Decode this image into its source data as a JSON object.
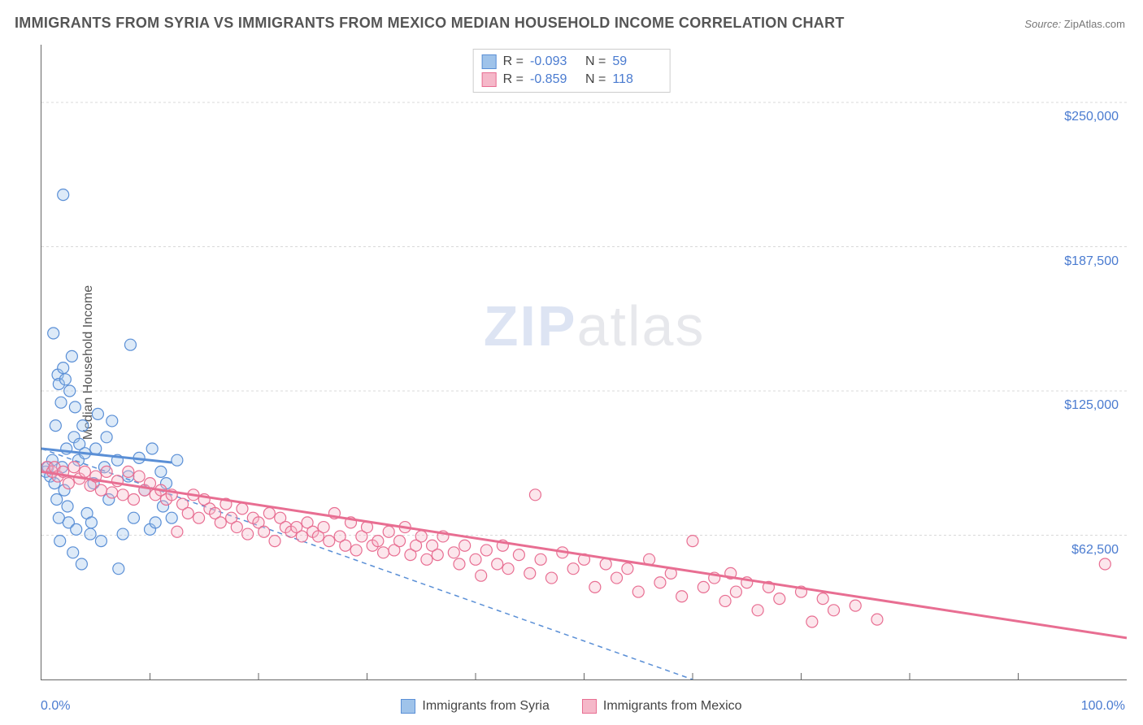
{
  "title": "IMMIGRANTS FROM SYRIA VS IMMIGRANTS FROM MEXICO MEDIAN HOUSEHOLD INCOME CORRELATION CHART",
  "source": {
    "label": "Source:",
    "text": "ZipAtlas.com"
  },
  "watermark": {
    "zip": "ZIP",
    "atlas": "atlas"
  },
  "chart": {
    "type": "scatter",
    "y_axis_label": "Median Household Income",
    "xlim": [
      0,
      100
    ],
    "ylim": [
      0,
      275000
    ],
    "x_ticks": [
      {
        "value": 0,
        "label": "0.0%"
      },
      {
        "value": 100,
        "label": "100.0%"
      }
    ],
    "x_minor_ticks": [
      10,
      20,
      30,
      40,
      50,
      60,
      70,
      80,
      90
    ],
    "y_gridlines": [
      {
        "value": 62500,
        "label": "$62,500"
      },
      {
        "value": 125000,
        "label": "$125,000"
      },
      {
        "value": 187500,
        "label": "$187,500"
      },
      {
        "value": 250000,
        "label": "$250,000"
      }
    ],
    "grid_color": "#d9d9d9",
    "background_color": "#ffffff",
    "marker_radius": 7,
    "marker_stroke_width": 1.2,
    "marker_fill_opacity": 0.35,
    "trendline_width": 3,
    "dashed_trendline_dash": "6 5",
    "series": [
      {
        "id": "syria",
        "label": "Immigrants from Syria",
        "color_fill": "#9fc3ea",
        "color_stroke": "#5a8fd6",
        "stats": {
          "R": "-0.093",
          "N": "59"
        },
        "trendline": {
          "x0": 0,
          "y0": 100000,
          "x1": 12,
          "y1": 94000,
          "solid": true
        },
        "dashed_trendline": {
          "x0": 0,
          "y0": 100000,
          "x1": 60,
          "y1": 0
        },
        "points": [
          [
            0.4,
            90000
          ],
          [
            0.6,
            92000
          ],
          [
            0.8,
            88000
          ],
          [
            1.0,
            95000
          ],
          [
            1.1,
            150000
          ],
          [
            1.2,
            85000
          ],
          [
            1.3,
            110000
          ],
          [
            1.4,
            78000
          ],
          [
            1.5,
            132000
          ],
          [
            1.6,
            128000
          ],
          [
            1.6,
            70000
          ],
          [
            1.7,
            60000
          ],
          [
            1.8,
            120000
          ],
          [
            1.9,
            92000
          ],
          [
            2.0,
            210000
          ],
          [
            2.0,
            135000
          ],
          [
            2.1,
            82000
          ],
          [
            2.2,
            130000
          ],
          [
            2.3,
            100000
          ],
          [
            2.4,
            75000
          ],
          [
            2.5,
            68000
          ],
          [
            2.6,
            125000
          ],
          [
            2.8,
            140000
          ],
          [
            2.9,
            55000
          ],
          [
            3.0,
            105000
          ],
          [
            3.1,
            118000
          ],
          [
            3.2,
            65000
          ],
          [
            3.4,
            95000
          ],
          [
            3.5,
            102000
          ],
          [
            3.7,
            50000
          ],
          [
            3.8,
            110000
          ],
          [
            4.0,
            98000
          ],
          [
            4.2,
            72000
          ],
          [
            4.5,
            63000
          ],
          [
            4.6,
            68000
          ],
          [
            4.8,
            85000
          ],
          [
            5.0,
            100000
          ],
          [
            5.2,
            115000
          ],
          [
            5.5,
            60000
          ],
          [
            5.8,
            92000
          ],
          [
            6.0,
            105000
          ],
          [
            6.2,
            78000
          ],
          [
            6.5,
            112000
          ],
          [
            7.0,
            95000
          ],
          [
            7.1,
            48000
          ],
          [
            7.5,
            63000
          ],
          [
            8.0,
            88000
          ],
          [
            8.2,
            145000
          ],
          [
            8.5,
            70000
          ],
          [
            9.0,
            96000
          ],
          [
            9.5,
            82000
          ],
          [
            10.0,
            65000
          ],
          [
            10.2,
            100000
          ],
          [
            10.5,
            68000
          ],
          [
            11.0,
            90000
          ],
          [
            11.2,
            75000
          ],
          [
            11.5,
            85000
          ],
          [
            12.0,
            70000
          ],
          [
            12.5,
            95000
          ]
        ]
      },
      {
        "id": "mexico",
        "label": "Immigrants from Mexico",
        "color_fill": "#f5b8c9",
        "color_stroke": "#e86e92",
        "stats": {
          "R": "-0.859",
          "N": "118"
        },
        "trendline": {
          "x0": 0,
          "y0": 90000,
          "x1": 100,
          "y1": 18000,
          "solid": true
        },
        "points": [
          [
            0.5,
            92000
          ],
          [
            1.0,
            90000
          ],
          [
            1.2,
            92000
          ],
          [
            1.5,
            88000
          ],
          [
            2.0,
            90000
          ],
          [
            2.5,
            85000
          ],
          [
            3.0,
            92000
          ],
          [
            3.5,
            87000
          ],
          [
            4.0,
            90000
          ],
          [
            4.5,
            84000
          ],
          [
            5.0,
            88000
          ],
          [
            5.5,
            82000
          ],
          [
            6.0,
            90000
          ],
          [
            6.5,
            81000
          ],
          [
            7.0,
            86000
          ],
          [
            7.5,
            80000
          ],
          [
            8.0,
            90000
          ],
          [
            8.5,
            78000
          ],
          [
            9.0,
            88000
          ],
          [
            9.5,
            82000
          ],
          [
            10.0,
            85000
          ],
          [
            10.5,
            80000
          ],
          [
            11.0,
            82000
          ],
          [
            11.5,
            78000
          ],
          [
            12.0,
            80000
          ],
          [
            12.5,
            64000
          ],
          [
            13.0,
            76000
          ],
          [
            13.5,
            72000
          ],
          [
            14.0,
            80000
          ],
          [
            14.5,
            70000
          ],
          [
            15.0,
            78000
          ],
          [
            15.5,
            74000
          ],
          [
            16.0,
            72000
          ],
          [
            16.5,
            68000
          ],
          [
            17.0,
            76000
          ],
          [
            17.5,
            70000
          ],
          [
            18.0,
            66000
          ],
          [
            18.5,
            74000
          ],
          [
            19.0,
            63000
          ],
          [
            19.5,
            70000
          ],
          [
            20.0,
            68000
          ],
          [
            20.5,
            64000
          ],
          [
            21.0,
            72000
          ],
          [
            21.5,
            60000
          ],
          [
            22.0,
            70000
          ],
          [
            22.5,
            66000
          ],
          [
            23.0,
            64000
          ],
          [
            23.5,
            66000
          ],
          [
            24.0,
            62000
          ],
          [
            24.5,
            68000
          ],
          [
            25.0,
            64000
          ],
          [
            25.5,
            62000
          ],
          [
            26.0,
            66000
          ],
          [
            26.5,
            60000
          ],
          [
            27.0,
            72000
          ],
          [
            27.5,
            62000
          ],
          [
            28.0,
            58000
          ],
          [
            28.5,
            68000
          ],
          [
            29.0,
            56000
          ],
          [
            29.5,
            62000
          ],
          [
            30.0,
            66000
          ],
          [
            30.5,
            58000
          ],
          [
            31.0,
            60000
          ],
          [
            31.5,
            55000
          ],
          [
            32.0,
            64000
          ],
          [
            32.5,
            56000
          ],
          [
            33.0,
            60000
          ],
          [
            33.5,
            66000
          ],
          [
            34.0,
            54000
          ],
          [
            34.5,
            58000
          ],
          [
            35.0,
            62000
          ],
          [
            35.5,
            52000
          ],
          [
            36.0,
            58000
          ],
          [
            36.5,
            54000
          ],
          [
            37.0,
            62000
          ],
          [
            38.0,
            55000
          ],
          [
            38.5,
            50000
          ],
          [
            39.0,
            58000
          ],
          [
            40.0,
            52000
          ],
          [
            40.5,
            45000
          ],
          [
            41.0,
            56000
          ],
          [
            42.0,
            50000
          ],
          [
            42.5,
            58000
          ],
          [
            43.0,
            48000
          ],
          [
            44.0,
            54000
          ],
          [
            45.0,
            46000
          ],
          [
            45.5,
            80000
          ],
          [
            46.0,
            52000
          ],
          [
            47.0,
            44000
          ],
          [
            48.0,
            55000
          ],
          [
            49.0,
            48000
          ],
          [
            50.0,
            52000
          ],
          [
            51.0,
            40000
          ],
          [
            52.0,
            50000
          ],
          [
            53.0,
            44000
          ],
          [
            54.0,
            48000
          ],
          [
            55.0,
            38000
          ],
          [
            56.0,
            52000
          ],
          [
            57.0,
            42000
          ],
          [
            58.0,
            46000
          ],
          [
            59.0,
            36000
          ],
          [
            60.0,
            60000
          ],
          [
            61.0,
            40000
          ],
          [
            62.0,
            44000
          ],
          [
            63.0,
            34000
          ],
          [
            63.5,
            46000
          ],
          [
            64.0,
            38000
          ],
          [
            65.0,
            42000
          ],
          [
            66.0,
            30000
          ],
          [
            67.0,
            40000
          ],
          [
            68.0,
            35000
          ],
          [
            70.0,
            38000
          ],
          [
            71.0,
            25000
          ],
          [
            72.0,
            35000
          ],
          [
            73.0,
            30000
          ],
          [
            75.0,
            32000
          ],
          [
            77.0,
            26000
          ],
          [
            98.0,
            50000
          ]
        ]
      }
    ]
  },
  "stats_box": {
    "r_label": "R",
    "n_label": "N",
    "eq": "="
  }
}
